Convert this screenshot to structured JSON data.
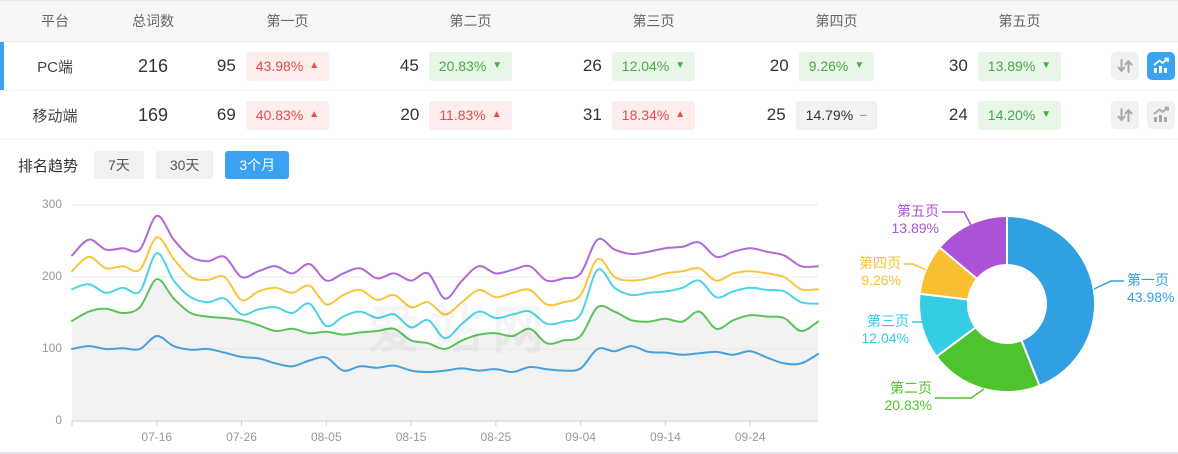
{
  "table": {
    "headers": {
      "platform": "平台",
      "total": "总词数",
      "pages": [
        "第一页",
        "第二页",
        "第三页",
        "第四页",
        "第五页"
      ]
    },
    "rows": [
      {
        "platform": "PC端",
        "total": "216",
        "selected": true,
        "chart_active": true,
        "pages": [
          {
            "count": "95",
            "pct": "43.98%",
            "trend": "up"
          },
          {
            "count": "45",
            "pct": "20.83%",
            "trend": "down"
          },
          {
            "count": "26",
            "pct": "12.04%",
            "trend": "down"
          },
          {
            "count": "20",
            "pct": "9.26%",
            "trend": "down"
          },
          {
            "count": "30",
            "pct": "13.89%",
            "trend": "down"
          }
        ]
      },
      {
        "platform": "移动端",
        "total": "169",
        "selected": false,
        "chart_active": false,
        "pages": [
          {
            "count": "69",
            "pct": "40.83%",
            "trend": "up"
          },
          {
            "count": "20",
            "pct": "11.83%",
            "trend": "up"
          },
          {
            "count": "31",
            "pct": "18.34%",
            "trend": "up"
          },
          {
            "count": "25",
            "pct": "14.79%",
            "trend": "flat"
          },
          {
            "count": "24",
            "pct": "14.20%",
            "trend": "down"
          }
        ]
      }
    ]
  },
  "trend": {
    "label": "排名趋势",
    "tabs": [
      {
        "label": "7天",
        "active": false
      },
      {
        "label": "30天",
        "active": false
      },
      {
        "label": "3个月",
        "active": true
      }
    ]
  },
  "watermark": "爱站网",
  "colors": {
    "accent_blue": "#3aa2f0",
    "badge_red_text": "#e64c49",
    "badge_red_bg": "#fdeded",
    "badge_green_text": "#47a947",
    "badge_green_bg": "#e8f6e8",
    "badge_flat_bg": "#f2f2f2"
  },
  "chart_data": [
    {
      "type": "line",
      "title": "排名趋势 3个月",
      "x_labels": [
        "07-16",
        "07-26",
        "08-05",
        "08-15",
        "08-25",
        "09-04",
        "09-14",
        "09-24"
      ],
      "ylim": [
        0,
        300
      ],
      "yticks": [
        0,
        100,
        200,
        300
      ],
      "grid": true,
      "series": [
        {
          "name": "第一页",
          "color": "#4aa0dc",
          "values": [
            100,
            104,
            100,
            101,
            100,
            118,
            104,
            99,
            100,
            95,
            89,
            87,
            80,
            76,
            84,
            88,
            70,
            76,
            74,
            77,
            70,
            68,
            70,
            73,
            70,
            72,
            68,
            75,
            72,
            70,
            73,
            100,
            97,
            104,
            96,
            95,
            92,
            94,
            96,
            92,
            97,
            88,
            80,
            80,
            93
          ]
        },
        {
          "name": "第二页",
          "color": "#5cc35c",
          "area": "#f2f2f2",
          "values": [
            139,
            152,
            156,
            150,
            158,
            197,
            170,
            150,
            145,
            143,
            140,
            133,
            125,
            128,
            122,
            124,
            120,
            123,
            125,
            128,
            112,
            108,
            100,
            112,
            120,
            122,
            118,
            128,
            108,
            112,
            118,
            158,
            152,
            140,
            138,
            142,
            138,
            152,
            128,
            140,
            147,
            145,
            143,
            125,
            138
          ]
        },
        {
          "name": "第三页",
          "color": "#4ed2e8",
          "values": [
            183,
            190,
            178,
            185,
            180,
            233,
            195,
            172,
            165,
            170,
            148,
            155,
            158,
            150,
            163,
            132,
            145,
            152,
            143,
            148,
            130,
            140,
            115,
            135,
            152,
            143,
            148,
            152,
            135,
            138,
            148,
            210,
            185,
            175,
            178,
            180,
            185,
            195,
            172,
            180,
            185,
            182,
            180,
            165,
            163
          ]
        },
        {
          "name": "第四页",
          "color": "#f8c63e",
          "values": [
            208,
            228,
            212,
            215,
            210,
            255,
            225,
            200,
            196,
            200,
            168,
            180,
            185,
            178,
            188,
            162,
            175,
            182,
            168,
            175,
            158,
            165,
            148,
            165,
            182,
            172,
            178,
            182,
            162,
            165,
            175,
            225,
            200,
            195,
            198,
            205,
            208,
            212,
            195,
            205,
            208,
            205,
            200,
            183,
            183
          ]
        },
        {
          "name": "第五页",
          "color": "#b168d8",
          "values": [
            230,
            252,
            238,
            240,
            238,
            285,
            252,
            228,
            222,
            228,
            200,
            208,
            215,
            205,
            218,
            195,
            205,
            212,
            198,
            205,
            195,
            205,
            170,
            195,
            215,
            205,
            210,
            215,
            195,
            198,
            205,
            252,
            238,
            232,
            235,
            240,
            242,
            248,
            228,
            235,
            240,
            235,
            230,
            215,
            215
          ]
        }
      ]
    },
    {
      "type": "pie",
      "donut": true,
      "labels": [
        "第一页",
        "第二页",
        "第三页",
        "第四页",
        "第五页"
      ],
      "values": [
        43.98,
        20.83,
        12.04,
        9.26,
        13.89
      ],
      "unit": "%",
      "colors": [
        "#31a0e3",
        "#4fc32d",
        "#35cde4",
        "#f9bf33",
        "#ab52d8"
      ]
    }
  ]
}
